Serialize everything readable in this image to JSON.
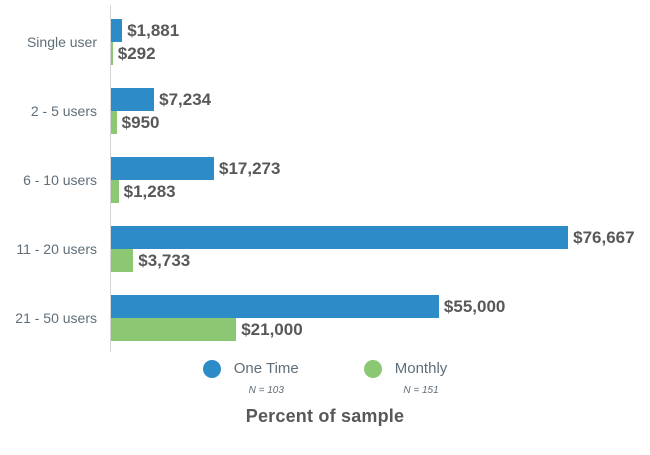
{
  "chart_data": {
    "type": "bar",
    "orientation": "horizontal",
    "title": "",
    "xlabel": "Percent of sample",
    "ylabel": "",
    "grid": false,
    "legend_position": "bottom",
    "xlim": [
      0,
      90400
    ],
    "categories": [
      "Single user",
      "2 - 5 users",
      "6 - 10 users",
      "11 - 20 users",
      "21 - 50 users"
    ],
    "series": [
      {
        "name": "One Time",
        "sample_size": "N = 103",
        "color": "#2d8cc8",
        "values": [
          1881,
          7234,
          17273,
          76667,
          55000
        ],
        "value_labels": [
          "$1,881",
          "$7,234",
          "$17,273",
          "$76,667",
          "$55,000"
        ]
      },
      {
        "name": "Monthly",
        "sample_size": "N = 151",
        "color": "#8cc873",
        "values": [
          292,
          950,
          1283,
          3733,
          21000
        ],
        "value_labels": [
          "$292",
          "$950",
          "$1,283",
          "$3,733",
          "$21,000"
        ]
      }
    ],
    "axis_line_color": "#d5d5d5",
    "value_label_color": "#57585a",
    "category_label_color": "#5f6e78"
  }
}
